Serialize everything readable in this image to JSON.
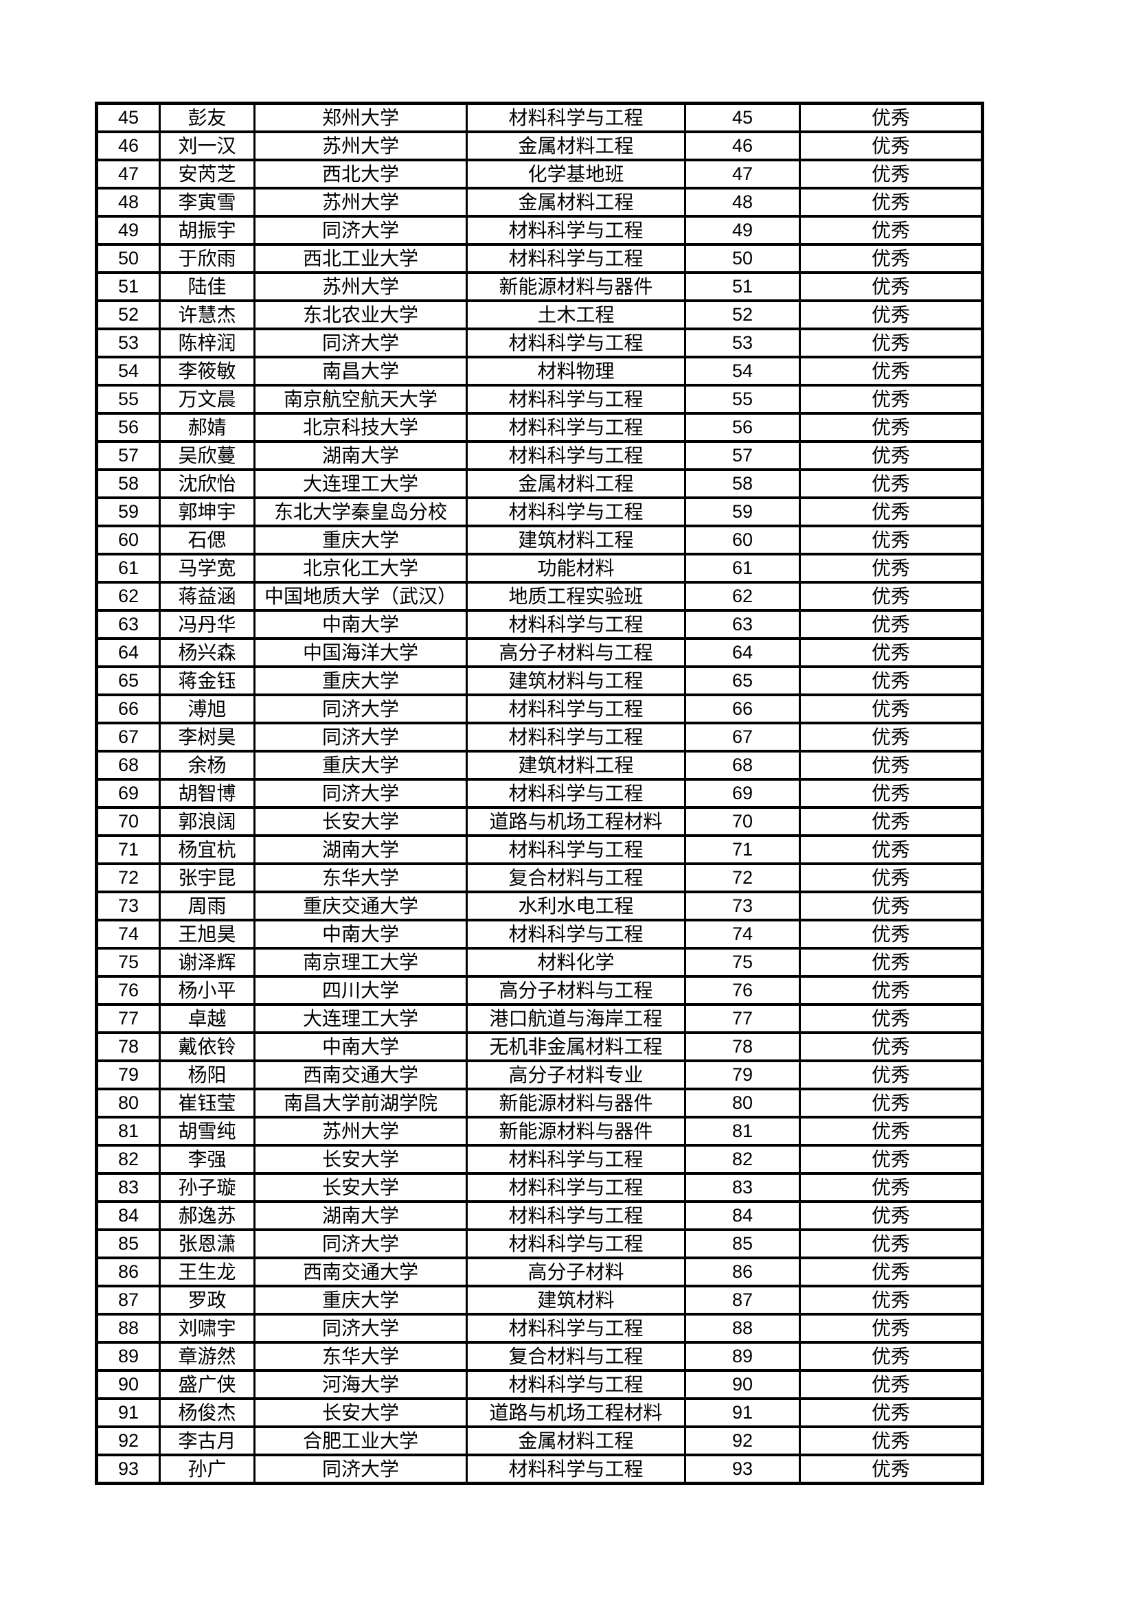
{
  "table": {
    "rows": [
      [
        "45",
        "彭友",
        "郑州大学",
        "材料科学与工程",
        "45",
        "优秀"
      ],
      [
        "46",
        "刘一汉",
        "苏州大学",
        "金属材料工程",
        "46",
        "优秀"
      ],
      [
        "47",
        "安芮芝",
        "西北大学",
        "化学基地班",
        "47",
        "优秀"
      ],
      [
        "48",
        "李寅雪",
        "苏州大学",
        "金属材料工程",
        "48",
        "优秀"
      ],
      [
        "49",
        "胡振宇",
        "同济大学",
        "材料科学与工程",
        "49",
        "优秀"
      ],
      [
        "50",
        "于欣雨",
        "西北工业大学",
        "材料科学与工程",
        "50",
        "优秀"
      ],
      [
        "51",
        "陆佳",
        "苏州大学",
        "新能源材料与器件",
        "51",
        "优秀"
      ],
      [
        "52",
        "许慧杰",
        "东北农业大学",
        "土木工程",
        "52",
        "优秀"
      ],
      [
        "53",
        "陈梓润",
        "同济大学",
        "材料科学与工程",
        "53",
        "优秀"
      ],
      [
        "54",
        "李筱敏",
        "南昌大学",
        "材料物理",
        "54",
        "优秀"
      ],
      [
        "55",
        "万文晨",
        "南京航空航天大学",
        "材料科学与工程",
        "55",
        "优秀"
      ],
      [
        "56",
        "郝婧",
        "北京科技大学",
        "材料科学与工程",
        "56",
        "优秀"
      ],
      [
        "57",
        "吴欣蔓",
        "湖南大学",
        "材料科学与工程",
        "57",
        "优秀"
      ],
      [
        "58",
        "沈欣怡",
        "大连理工大学",
        "金属材料工程",
        "58",
        "优秀"
      ],
      [
        "59",
        "郭坤宇",
        "东北大学秦皇岛分校",
        "材料科学与工程",
        "59",
        "优秀"
      ],
      [
        "60",
        "石偲",
        "重庆大学",
        "建筑材料工程",
        "60",
        "优秀"
      ],
      [
        "61",
        "马学宽",
        "北京化工大学",
        "功能材料",
        "61",
        "优秀"
      ],
      [
        "62",
        "蒋益涵",
        "中国地质大学（武汉）",
        "地质工程实验班",
        "62",
        "优秀"
      ],
      [
        "63",
        "冯丹华",
        "中南大学",
        "材料科学与工程",
        "63",
        "优秀"
      ],
      [
        "64",
        "杨兴森",
        "中国海洋大学",
        "高分子材料与工程",
        "64",
        "优秀"
      ],
      [
        "65",
        "蒋金钰",
        "重庆大学",
        "建筑材料与工程",
        "65",
        "优秀"
      ],
      [
        "66",
        "溥旭",
        "同济大学",
        "材料科学与工程",
        "66",
        "优秀"
      ],
      [
        "67",
        "李树昊",
        "同济大学",
        "材料科学与工程",
        "67",
        "优秀"
      ],
      [
        "68",
        "余杨",
        "重庆大学",
        "建筑材料工程",
        "68",
        "优秀"
      ],
      [
        "69",
        "胡智博",
        "同济大学",
        "材料科学与工程",
        "69",
        "优秀"
      ],
      [
        "70",
        "郭浪阔",
        "长安大学",
        "道路与机场工程材料",
        "70",
        "优秀"
      ],
      [
        "71",
        "杨宜杭",
        "湖南大学",
        "材料科学与工程",
        "71",
        "优秀"
      ],
      [
        "72",
        "张宇昆",
        "东华大学",
        "复合材料与工程",
        "72",
        "优秀"
      ],
      [
        "73",
        "周雨",
        "重庆交通大学",
        "水利水电工程",
        "73",
        "优秀"
      ],
      [
        "74",
        "王旭昊",
        "中南大学",
        "材料科学与工程",
        "74",
        "优秀"
      ],
      [
        "75",
        "谢泽辉",
        "南京理工大学",
        "材料化学",
        "75",
        "优秀"
      ],
      [
        "76",
        "杨小平",
        "四川大学",
        "高分子材料与工程",
        "76",
        "优秀"
      ],
      [
        "77",
        "卓越",
        "大连理工大学",
        "港口航道与海岸工程",
        "77",
        "优秀"
      ],
      [
        "78",
        "戴依铃",
        "中南大学",
        "无机非金属材料工程",
        "78",
        "优秀"
      ],
      [
        "79",
        "杨阳",
        "西南交通大学",
        "高分子材料专业",
        "79",
        "优秀"
      ],
      [
        "80",
        "崔钰莹",
        "南昌大学前湖学院",
        "新能源材料与器件",
        "80",
        "优秀"
      ],
      [
        "81",
        "胡雪纯",
        "苏州大学",
        "新能源材料与器件",
        "81",
        "优秀"
      ],
      [
        "82",
        "李强",
        "长安大学",
        "材料科学与工程",
        "82",
        "优秀"
      ],
      [
        "83",
        "孙子璇",
        "长安大学",
        "材料科学与工程",
        "83",
        "优秀"
      ],
      [
        "84",
        "郝逸苏",
        "湖南大学",
        "材料科学与工程",
        "84",
        "优秀"
      ],
      [
        "85",
        "张恩潇",
        "同济大学",
        "材料科学与工程",
        "85",
        "优秀"
      ],
      [
        "86",
        "王生龙",
        "西南交通大学",
        "高分子材料",
        "86",
        "优秀"
      ],
      [
        "87",
        "罗政",
        "重庆大学",
        "建筑材料",
        "87",
        "优秀"
      ],
      [
        "88",
        "刘啸宇",
        "同济大学",
        "材料科学与工程",
        "88",
        "优秀"
      ],
      [
        "89",
        "章游然",
        "东华大学",
        "复合材料与工程",
        "89",
        "优秀"
      ],
      [
        "90",
        "盛广侠",
        "河海大学",
        "材料科学与工程",
        "90",
        "优秀"
      ],
      [
        "91",
        "杨俊杰",
        "长安大学",
        "道路与机场工程材料",
        "91",
        "优秀"
      ],
      [
        "92",
        "李古月",
        "合肥工业大学",
        "金属材料工程",
        "92",
        "优秀"
      ],
      [
        "93",
        "孙广",
        "同济大学",
        "材料科学与工程",
        "93",
        "优秀"
      ]
    ]
  }
}
